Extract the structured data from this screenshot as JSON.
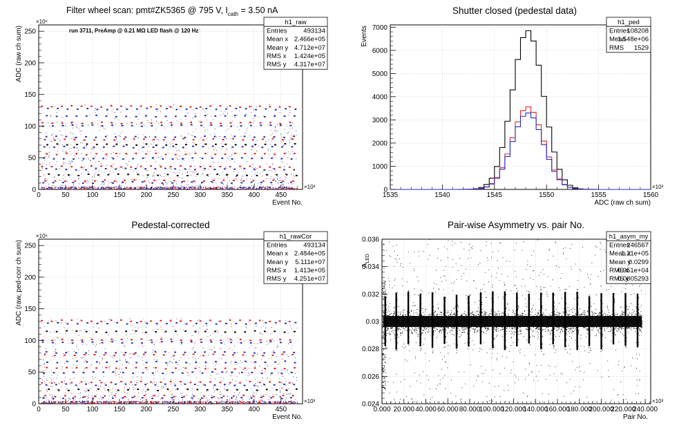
{
  "colors": {
    "black": "#000000",
    "red": "#e8211c",
    "blue": "#1f2fc4",
    "grid": "#bdbdbd"
  },
  "chart_data": [
    {
      "id": "raw",
      "type": "scatter",
      "title": "Filter wheel scan: pmt#ZK5365 @   795 V, I",
      "title_sub": "cath",
      "title_tail": " = 3.50 nA",
      "annotation": "run 3711, PreAmp @ 0.21 MΩ LED flash @  120 Hz",
      "xlabel": "Event No.",
      "ylabel": "ADC (raw ch sum)",
      "x_multiplier": "×10³",
      "y_multiplier": "×10⁶",
      "xlim": [
        0,
        490
      ],
      "ylim": [
        0,
        260
      ],
      "xticks": [
        0,
        50,
        100,
        150,
        200,
        250,
        300,
        350,
        400,
        450
      ],
      "yticks": [
        0,
        50,
        100,
        150,
        200,
        250
      ],
      "grid": true,
      "stats": {
        "name": "h1_raw",
        "rows": [
          [
            "Entries",
            "493134"
          ],
          [
            "Mean x",
            "2.466e+05"
          ],
          [
            "Mean y",
            "4.712e+07"
          ],
          [
            "RMS x",
            "1.424e+05"
          ],
          [
            "RMS y",
            "4.317e+07"
          ]
        ]
      },
      "period": 18.4,
      "x0": 6,
      "levels": [
        {
          "y": 131,
          "color": "red",
          "phase": 0.0
        },
        {
          "y": 127,
          "color": "blue",
          "phase": 0.6
        },
        {
          "y": 116,
          "color": "blue",
          "phase": 0.5
        },
        {
          "y": 105,
          "color": "red",
          "phase": 0.05
        },
        {
          "y": 101,
          "color": "blue",
          "phase": 0.1
        },
        {
          "y": 83,
          "color": "blue",
          "phase": 0.45
        },
        {
          "y": 79,
          "color": "red",
          "phase": 0.3
        },
        {
          "y": 71,
          "color": "black",
          "phase": 0.55
        },
        {
          "y": 67,
          "color": "blue",
          "phase": 0.25
        },
        {
          "y": 56,
          "color": "red",
          "phase": 0.5
        },
        {
          "y": 49,
          "color": "blue",
          "phase": 0.2
        },
        {
          "y": 36,
          "color": "red",
          "phase": 0.0
        },
        {
          "y": 32,
          "color": "blue",
          "phase": 0.45
        },
        {
          "y": 23,
          "color": "black",
          "phase": 0.7
        },
        {
          "y": 14,
          "color": "red",
          "phase": 0.35
        },
        {
          "y": 11,
          "color": "blue",
          "phase": 0.15
        },
        {
          "y": 2.5,
          "color": "blue",
          "phase": 0.0
        }
      ]
    },
    {
      "id": "ped",
      "type": "bar",
      "title": "Shutter closed (pedestal data)",
      "xlabel": "ADC (raw ch sum)",
      "ylabel": "Events",
      "x_multiplier": "×10³",
      "xlim": [
        1535,
        1560
      ],
      "ylim": [
        0,
        7100
      ],
      "xticks": [
        1535,
        1540,
        1545,
        1550,
        1555,
        1560
      ],
      "yticks": [
        0,
        1000,
        2000,
        3000,
        4000,
        5000,
        6000,
        7000
      ],
      "grid": true,
      "stats": {
        "name": "h1_ped",
        "rows": [
          [
            "Entries",
            "108208"
          ],
          [
            "Mean",
            "1.548e+06"
          ],
          [
            "RMS",
            "1529"
          ]
        ]
      },
      "bin_width": 0.5,
      "series": [
        {
          "color": "black",
          "mean": 1548.2,
          "sigma": 1.5,
          "peak": 6850
        },
        {
          "color": "red",
          "mean": 1548.2,
          "sigma": 1.5,
          "peak": 3560
        },
        {
          "color": "blue",
          "mean": 1548.2,
          "sigma": 1.5,
          "peak": 3300
        }
      ]
    },
    {
      "id": "rawCor",
      "type": "scatter",
      "title": "Pedestal-corrected",
      "xlabel": "Event No.",
      "ylabel": "ADC (raw, ped-corr ch sum)",
      "x_multiplier": "×10³",
      "y_multiplier": "×10⁶",
      "xlim": [
        0,
        490
      ],
      "ylim": [
        0,
        260
      ],
      "xticks": [
        0,
        50,
        100,
        150,
        200,
        250,
        300,
        350,
        400,
        450
      ],
      "yticks": [
        0,
        50,
        100,
        150,
        200,
        250
      ],
      "grid": true,
      "stats": {
        "name": "h1_rawCor",
        "rows": [
          [
            "Entries",
            "493134"
          ],
          [
            "Mean x",
            "2.484e+05"
          ],
          [
            "Mean y",
            "5.111e+07"
          ],
          [
            "RMS x",
            "1.413e+05"
          ],
          [
            "RMS y",
            "4.251e+07"
          ]
        ]
      },
      "period": 18.4,
      "x0": 6,
      "levels": [
        {
          "y": 131,
          "color": "red",
          "phase": 0.0
        },
        {
          "y": 127,
          "color": "blue",
          "phase": 0.6
        },
        {
          "y": 114,
          "color": "black",
          "phase": 0.5
        },
        {
          "y": 101,
          "color": "red",
          "phase": 0.05
        },
        {
          "y": 97,
          "color": "blue",
          "phase": 0.1
        },
        {
          "y": 81,
          "color": "blue",
          "phase": 0.45
        },
        {
          "y": 77,
          "color": "red",
          "phase": 0.3
        },
        {
          "y": 66,
          "color": "blue",
          "phase": 0.55
        },
        {
          "y": 56,
          "color": "red",
          "phase": 0.5
        },
        {
          "y": 49,
          "color": "blue",
          "phase": 0.2
        },
        {
          "y": 34,
          "color": "red",
          "phase": 0.0
        },
        {
          "y": 30,
          "color": "blue",
          "phase": 0.45
        },
        {
          "y": 22,
          "color": "black",
          "phase": 0.7
        },
        {
          "y": 12,
          "color": "red",
          "phase": 0.35
        },
        {
          "y": 9,
          "color": "blue",
          "phase": 0.15
        },
        {
          "y": 2,
          "color": "red",
          "phase": 0.0
        }
      ]
    },
    {
      "id": "asym",
      "type": "scatter",
      "title": "Pair-wise Asymmetry vs. pair No.",
      "xlabel": "Pair No.",
      "ylabel": "A",
      "ylabel_sub": "LED",
      "x_multiplier": "×10³",
      "xlim": [
        0,
        245
      ],
      "ylim": [
        0.024,
        0.036
      ],
      "xticks": [
        0,
        20,
        40,
        60,
        80,
        100,
        120,
        140,
        160,
        180,
        200,
        220,
        240
      ],
      "yticks": [
        0.024,
        0.026,
        0.028,
        0.03,
        0.032,
        0.034,
        0.036
      ],
      "grid": true,
      "stats": {
        "name": "h1_asym_my",
        "rows": [
          [
            "Entries",
            "246567"
          ],
          [
            "Mean x",
            "1.21e+05"
          ],
          [
            "Mean y",
            "0.0299"
          ],
          [
            "RMS x",
            "6.951e+04"
          ],
          [
            "RMS y",
            "0.0005293"
          ]
        ]
      },
      "band_center": 0.03,
      "band_halfwidth": 0.0004,
      "band_end": 237,
      "spikes": [
        3,
        13,
        24,
        35,
        46,
        57,
        68,
        79,
        90,
        101,
        112,
        123,
        134,
        145,
        156,
        167,
        178,
        189,
        200,
        211,
        222,
        233
      ]
    }
  ]
}
